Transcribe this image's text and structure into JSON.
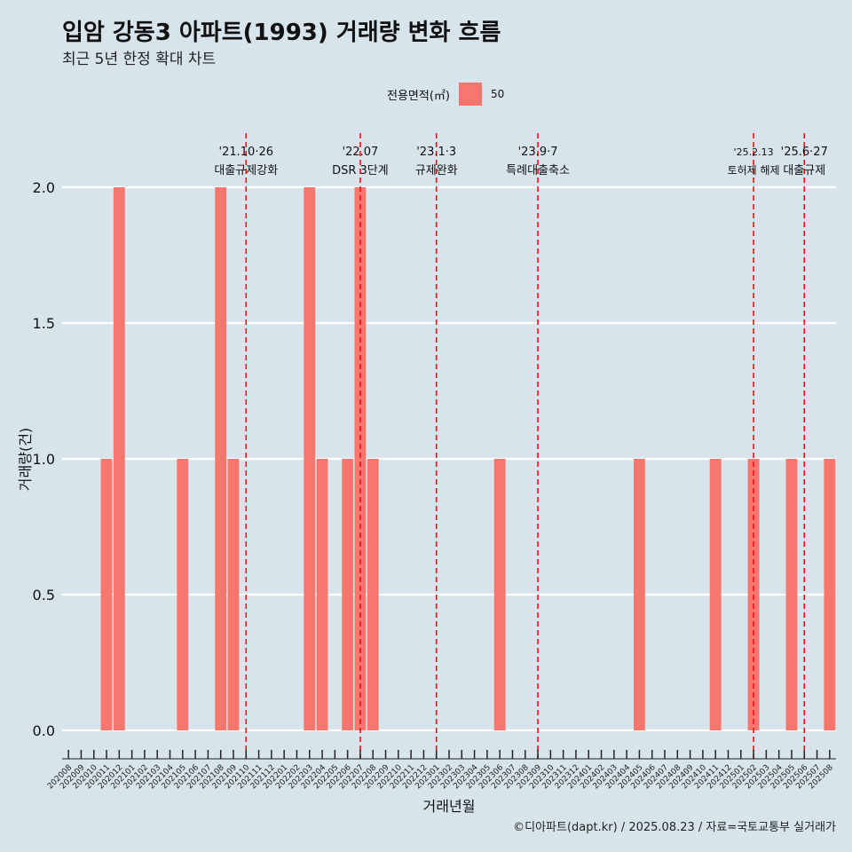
{
  "title": "입암 강동3 아파트(1993) 거래량 변화 흐름",
  "subtitle": "최근 5년 한정 확대 차트",
  "caption": "©디아파트(dapt.kr) / 2025.08.23 / 자료=국토교통부 실거래가",
  "legend": {
    "title": "전용면적(㎡)",
    "entries": [
      {
        "label": "50",
        "color": "#f8766d"
      }
    ]
  },
  "chart_data": {
    "type": "bar",
    "xlabel": "거래년월",
    "ylabel": "거래량(건)",
    "ylim": [
      0,
      2
    ],
    "yticks": [
      "0.0",
      "0.5",
      "1.0",
      "1.5",
      "2.0"
    ],
    "categories": [
      "202008",
      "202009",
      "202010",
      "202011",
      "202012",
      "202101",
      "202102",
      "202103",
      "202104",
      "202105",
      "202106",
      "202107",
      "202108",
      "202109",
      "202110",
      "202111",
      "202112",
      "202201",
      "202202",
      "202203",
      "202204",
      "202205",
      "202206",
      "202207",
      "202208",
      "202209",
      "202210",
      "202211",
      "202212",
      "202301",
      "202302",
      "202303",
      "202304",
      "202305",
      "202306",
      "202307",
      "202308",
      "202309",
      "202310",
      "202311",
      "202312",
      "202401",
      "202402",
      "202403",
      "202404",
      "202405",
      "202406",
      "202407",
      "202408",
      "202409",
      "202410",
      "202411",
      "202412",
      "202501",
      "202502",
      "202503",
      "202504",
      "202505",
      "202506",
      "202507",
      "202508"
    ],
    "series": [
      {
        "name": "50",
        "color": "#f8766d",
        "values": [
          0,
          0,
          0,
          1,
          2,
          0,
          0,
          0,
          0,
          1,
          0,
          0,
          2,
          1,
          0,
          0,
          0,
          0,
          0,
          2,
          1,
          0,
          1,
          2,
          1,
          0,
          0,
          0,
          0,
          0,
          0,
          0,
          0,
          0,
          1,
          0,
          0,
          0,
          0,
          0,
          0,
          0,
          0,
          0,
          0,
          1,
          0,
          0,
          0,
          0,
          0,
          1,
          0,
          0,
          1,
          0,
          0,
          1,
          0,
          0,
          1
        ]
      }
    ],
    "annotations": [
      {
        "label": "'21.10·26",
        "sublabel": "대출규제강화",
        "x": "202110"
      },
      {
        "label": "'22.07",
        "sublabel": "DSR 3단계",
        "x": "202207"
      },
      {
        "label": "'23.1·3",
        "sublabel": "규제완화",
        "x": "202301"
      },
      {
        "label": "'23.9·7",
        "sublabel": "특례대출축소",
        "x": "202309"
      },
      {
        "label": "'25.2.13",
        "sublabel": "토허제 해제",
        "x": "202502"
      },
      {
        "label": "'25.6·27",
        "sublabel": "대출규제",
        "x": "202506"
      }
    ],
    "grid": true,
    "legend_position": "top"
  }
}
